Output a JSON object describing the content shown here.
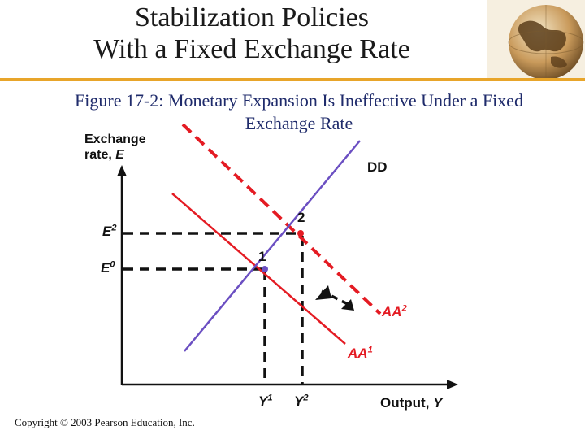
{
  "slide": {
    "title_line1": "Stabilization Policies",
    "title_line2": "With a Fixed Exchange Rate"
  },
  "figure": {
    "caption_number": "Figure 17-2:",
    "caption_text_line1": " Monetary Expansion Is Ineffective Under a Fixed",
    "caption_text_line2": "Exchange Rate",
    "y_axis_label_line1": "Exchange",
    "y_axis_label_line2": "rate, ",
    "y_axis_symbol": "E",
    "x_axis_label": "Output, ",
    "x_axis_symbol": "Y",
    "curves": {
      "dd": "DD",
      "aa1_base": "AA",
      "aa1_sup": "1",
      "aa2_base": "AA",
      "aa2_sup": "2"
    },
    "levels": {
      "e2_base": "E",
      "e2_sup": "2",
      "e0_base": "E",
      "e0_sup": "0",
      "y1_base": "Y",
      "y1_sup": "1",
      "y2_base": "Y",
      "y2_sup": "2"
    },
    "points": {
      "point1": "1",
      "point2": "2"
    },
    "colors": {
      "dd_curve": "#6b4fc2",
      "aa_curve": "#e41b23",
      "axes": "#111111",
      "guides": "#111111"
    }
  },
  "footer": {
    "copyright": "Copyright © 2003 Pearson Education, Inc."
  }
}
